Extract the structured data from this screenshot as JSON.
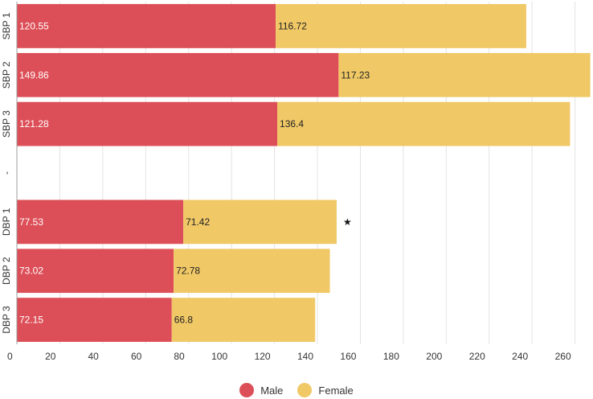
{
  "chart_data": {
    "type": "bar",
    "orientation": "horizontal",
    "stacked": true,
    "categories": [
      "SBP 1",
      "SBP 2",
      "SBP 3",
      "-",
      "DBP 1",
      "DBP 2",
      "DBP 3"
    ],
    "series": [
      {
        "name": "Male",
        "color": "#dd4f58",
        "values": [
          120.55,
          149.86,
          121.28,
          null,
          77.53,
          73.02,
          72.15
        ]
      },
      {
        "name": "Female",
        "color": "#f0c866",
        "values": [
          116.72,
          117.23,
          136.4,
          null,
          71.42,
          72.78,
          66.8
        ]
      }
    ],
    "xlim": [
      0,
      268
    ],
    "xticks": [
      0,
      20,
      40,
      60,
      80,
      100,
      120,
      140,
      160,
      180,
      200,
      220,
      240,
      260
    ],
    "grid": true,
    "legend_position": "bottom",
    "annotations": [
      {
        "category": "DBP 1",
        "text": "★"
      }
    ],
    "title": "",
    "xlabel": "",
    "ylabel": ""
  }
}
